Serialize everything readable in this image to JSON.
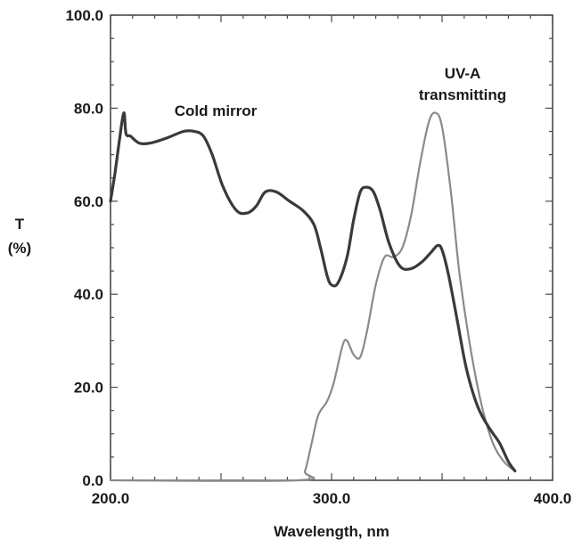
{
  "chart_data": {
    "type": "line",
    "title": "",
    "xlabel": "Wavelength, nm",
    "ylabel_line1": "T",
    "ylabel_line2": "(%)",
    "xlim": [
      200,
      400
    ],
    "ylim": [
      0,
      100
    ],
    "xticks": [
      200,
      300,
      400
    ],
    "yticks": [
      0,
      20,
      40,
      60,
      80,
      100
    ],
    "xtick_labels": [
      "200.0",
      "300.0",
      "400.0"
    ],
    "ytick_labels": [
      "0.0",
      "20.0",
      "40.0",
      "60.0",
      "80.0",
      "100.0"
    ],
    "grid": false,
    "annotations": {
      "cold_mirror": "Cold mirror",
      "uva_line1": "UV-A",
      "uva_line2": "transmitting"
    },
    "series": [
      {
        "name": "Cold mirror",
        "color": "#3a3a3a",
        "points": [
          [
            200,
            60
          ],
          [
            202,
            66
          ],
          [
            204,
            73
          ],
          [
            206,
            79
          ],
          [
            207,
            74.5
          ],
          [
            209,
            74
          ],
          [
            213,
            72.5
          ],
          [
            218,
            72.5
          ],
          [
            225,
            73.5
          ],
          [
            233,
            75
          ],
          [
            238,
            75
          ],
          [
            242,
            74
          ],
          [
            246,
            70
          ],
          [
            251,
            63
          ],
          [
            257,
            58
          ],
          [
            262,
            57.5
          ],
          [
            266,
            59
          ],
          [
            270,
            62
          ],
          [
            275,
            62
          ],
          [
            281,
            60
          ],
          [
            287,
            58
          ],
          [
            292,
            55
          ],
          [
            295,
            50
          ],
          [
            298,
            44
          ],
          [
            300,
            42
          ],
          [
            303,
            42.5
          ],
          [
            307,
            48
          ],
          [
            310,
            56
          ],
          [
            313,
            62
          ],
          [
            316,
            63
          ],
          [
            319,
            62
          ],
          [
            322,
            58
          ],
          [
            326,
            51
          ],
          [
            331,
            46
          ],
          [
            336,
            45.5
          ],
          [
            341,
            47
          ],
          [
            345,
            49
          ],
          [
            348,
            50.5
          ],
          [
            350,
            49.5
          ],
          [
            353,
            44
          ],
          [
            357,
            34
          ],
          [
            361,
            24
          ],
          [
            366,
            16
          ],
          [
            371,
            11.5
          ],
          [
            376,
            8
          ],
          [
            380,
            4
          ],
          [
            383,
            2
          ]
        ]
      },
      {
        "name": "UV-A transmitting",
        "color": "#8a8a8a",
        "points": [
          [
            200,
            0
          ],
          [
            285,
            0
          ],
          [
            288,
            2
          ],
          [
            291,
            8
          ],
          [
            294,
            14
          ],
          [
            298,
            17
          ],
          [
            301,
            21
          ],
          [
            305,
            29
          ],
          [
            307,
            30
          ],
          [
            310,
            27
          ],
          [
            313,
            26.5
          ],
          [
            316,
            32
          ],
          [
            320,
            42
          ],
          [
            324,
            48
          ],
          [
            328,
            48
          ],
          [
            332,
            50
          ],
          [
            336,
            57
          ],
          [
            340,
            68
          ],
          [
            344,
            77
          ],
          [
            347,
            79
          ],
          [
            350,
            76
          ],
          [
            354,
            62
          ],
          [
            358,
            44
          ],
          [
            363,
            28
          ],
          [
            368,
            16
          ],
          [
            373,
            8
          ],
          [
            378,
            4
          ],
          [
            383,
            2
          ]
        ]
      }
    ]
  }
}
